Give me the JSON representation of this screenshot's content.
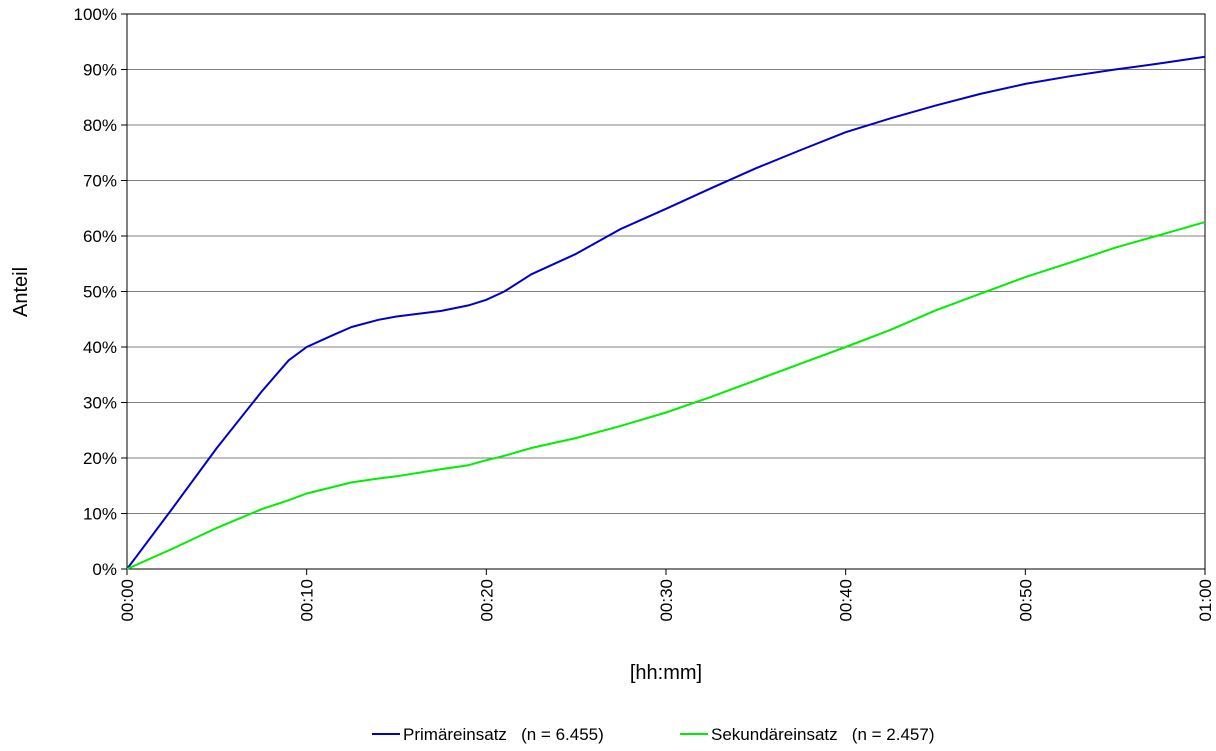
{
  "chart_data": {
    "type": "line",
    "title": "",
    "xlabel": "[hh:mm]",
    "ylabel": "Anteil",
    "xlim": [
      0,
      60
    ],
    "ylim": [
      0,
      100
    ],
    "x_tick_labels": [
      "00:00",
      "00:10",
      "00:20",
      "00:30",
      "00:40",
      "00:50",
      "01:00"
    ],
    "y_tick_labels": [
      "0%",
      "10%",
      "20%",
      "30%",
      "40%",
      "50%",
      "60%",
      "70%",
      "80%",
      "90%",
      "100%"
    ],
    "grid": "horizontal",
    "legend_position": "bottom",
    "x": [
      0,
      2.5,
      5,
      7.5,
      9,
      10,
      11.5,
      12.5,
      14,
      15,
      17.5,
      19,
      20,
      21,
      22.5,
      25,
      27.5,
      30,
      32.5,
      35,
      37.5,
      40,
      42.5,
      45,
      47.5,
      50,
      52.5,
      55,
      57.5,
      60
    ],
    "series": [
      {
        "name": "Primäreinsatz   (n = 6.455)",
        "color": "#0000cc",
        "values": [
          0,
          10.8,
          21.8,
          32.0,
          37.6,
          40.0,
          42.2,
          43.6,
          44.9,
          45.5,
          46.5,
          47.5,
          48.5,
          50.0,
          53.1,
          56.8,
          61.3,
          64.9,
          68.6,
          72.2,
          75.5,
          78.7,
          81.2,
          83.5,
          85.6,
          87.4,
          88.8,
          90.0,
          91.1,
          92.3
        ]
      },
      {
        "name": "Sekundäreinsatz   (n = 2.457)",
        "color": "#00ee00",
        "values": [
          0,
          3.6,
          7.4,
          10.8,
          12.4,
          13.6,
          14.8,
          15.6,
          16.3,
          16.7,
          18.0,
          18.7,
          19.6,
          20.4,
          21.8,
          23.6,
          25.8,
          28.2,
          31.0,
          34.0,
          37.0,
          40.0,
          43.1,
          46.6,
          49.6,
          52.6,
          55.2,
          57.9,
          60.2,
          62.5
        ]
      }
    ]
  }
}
